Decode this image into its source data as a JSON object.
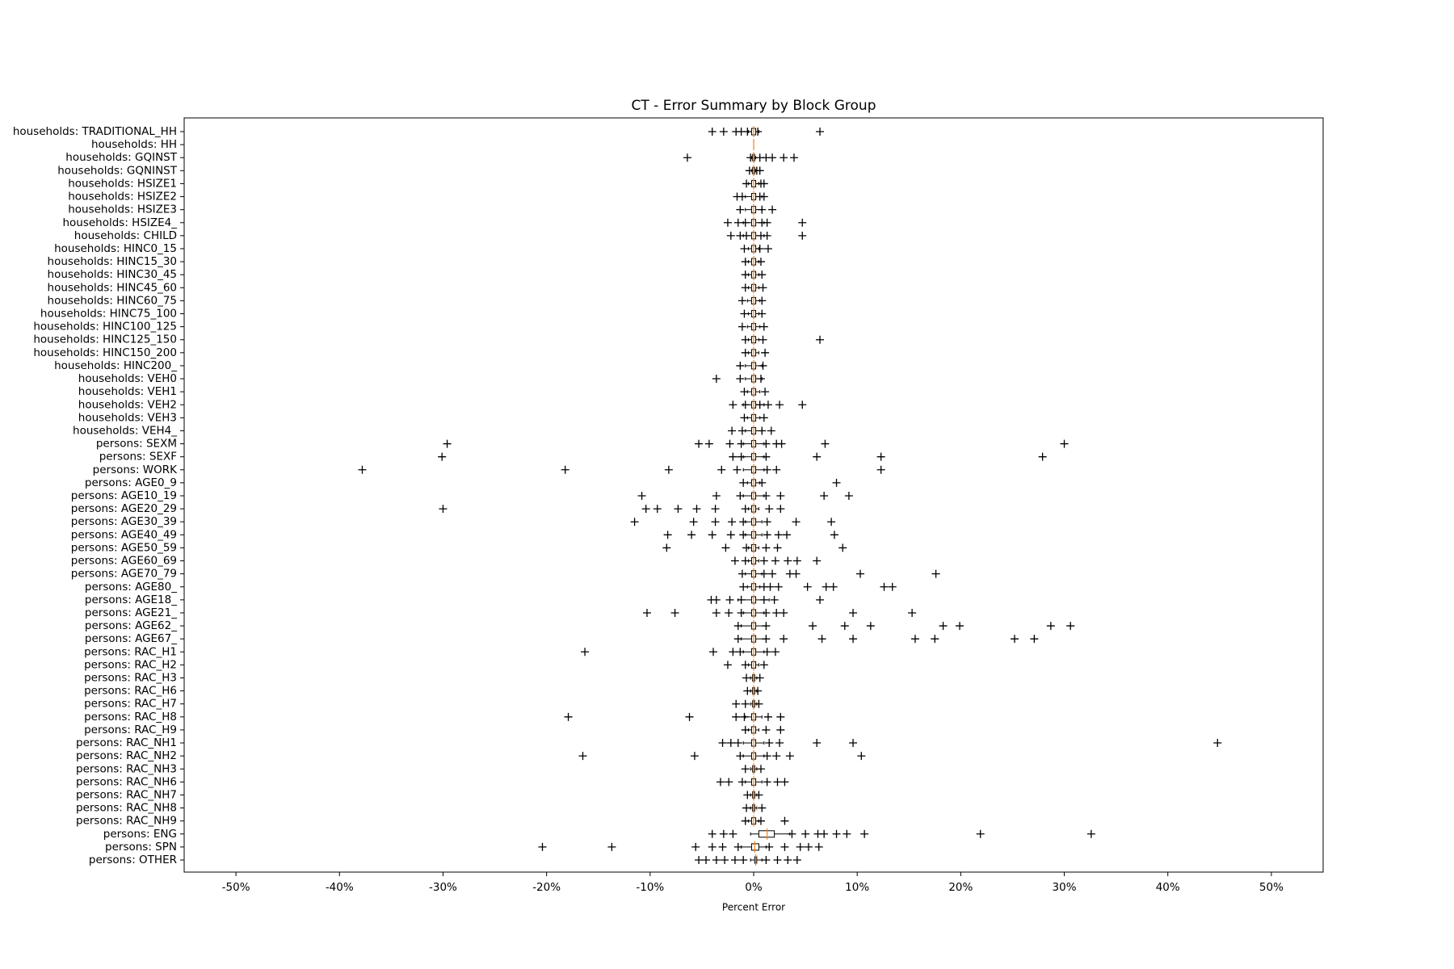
{
  "chart_data": {
    "type": "boxplot",
    "title": "CT - Error Summary by Block Group",
    "x_label": "Percent Error",
    "categories": [
      "households: TRADITIONAL_HH",
      "households: HH",
      "households: GQINST",
      "households: GQNINST",
      "households: HSIZE1",
      "households: HSIZE2",
      "households: HSIZE3",
      "households: HSIZE4_",
      "households: CHILD",
      "households: HINC0_15",
      "households: HINC15_30",
      "households: HINC30_45",
      "households: HINC45_60",
      "households: HINC60_75",
      "households: HINC75_100",
      "households: HINC100_125",
      "households: HINC125_150",
      "households: HINC150_200",
      "households: HINC200_",
      "households: VEH0",
      "households: VEH1",
      "households: VEH2",
      "households: VEH3",
      "households: VEH4_",
      "persons: SEXM",
      "persons: SEXF",
      "persons: WORK",
      "persons: AGE0_9",
      "persons: AGE10_19",
      "persons: AGE20_29",
      "persons: AGE30_39",
      "persons: AGE40_49",
      "persons: AGE50_59",
      "persons: AGE60_69",
      "persons: AGE70_79",
      "persons: AGE80_",
      "persons: AGE18_",
      "persons: AGE21_",
      "persons: AGE62_",
      "persons: AGE67_",
      "persons: RAC_H1",
      "persons: RAC_H2",
      "persons: RAC_H3",
      "persons: RAC_H6",
      "persons: RAC_H7",
      "persons: RAC_H8",
      "persons: RAC_H9",
      "persons: RAC_NH1",
      "persons: RAC_NH2",
      "persons: RAC_NH3",
      "persons: RAC_NH6",
      "persons: RAC_NH7",
      "persons: RAC_NH8",
      "persons: RAC_NH9",
      "persons: ENG",
      "persons: SPN",
      "persons: OTHER"
    ],
    "whislo": [
      -0.5,
      0,
      -0.2,
      -0.2,
      -0.5,
      -0.8,
      -0.8,
      -1,
      -1,
      -0.5,
      -0.5,
      -0.5,
      -0.5,
      -0.6,
      -0.5,
      -0.6,
      -0.5,
      -0.5,
      -0.8,
      -0.8,
      -0.6,
      -1,
      -0.6,
      -0.8,
      -1,
      -1,
      -1,
      -0.6,
      -1,
      -0.5,
      -0.8,
      -0.8,
      -0.5,
      -0.5,
      -0.8,
      -0.6,
      -1.5,
      -1,
      -1.2,
      -1.2,
      -1,
      -0.5,
      -0.3,
      -0.3,
      -0.3,
      -0.8,
      -0.5,
      -1,
      -1,
      -0.3,
      -0.8,
      -0.3,
      -0.3,
      -0.5,
      -0.3,
      -1.2,
      -0.3
    ],
    "q1": [
      -0.2,
      0,
      -0.1,
      -0.1,
      -0.2,
      -0.2,
      -0.2,
      -0.2,
      -0.2,
      -0.2,
      -0.2,
      -0.2,
      -0.2,
      -0.2,
      -0.2,
      -0.2,
      -0.2,
      -0.2,
      -0.2,
      -0.2,
      -0.2,
      -0.2,
      -0.2,
      -0.2,
      -0.2,
      -0.2,
      -0.2,
      -0.2,
      -0.2,
      -0.2,
      -0.2,
      -0.2,
      -0.2,
      -0.2,
      -0.2,
      -0.2,
      -0.2,
      -0.2,
      -0.2,
      -0.2,
      -0.2,
      -0.2,
      -0.1,
      -0.1,
      -0.1,
      -0.2,
      -0.2,
      -0.2,
      -0.2,
      -0.1,
      -0.2,
      -0.1,
      -0.1,
      -0.2,
      0.5,
      -0.2,
      0.1
    ],
    "median": [
      0,
      0,
      0,
      0,
      0,
      0,
      0,
      0,
      0,
      0,
      0,
      0,
      0,
      0,
      0,
      0,
      0,
      0,
      0,
      0,
      0,
      0,
      0,
      0,
      0,
      0,
      0,
      0,
      0,
      0,
      0,
      0,
      0,
      0,
      0,
      0,
      0,
      0,
      0,
      0,
      0,
      0,
      0,
      0,
      0,
      0,
      0,
      0,
      0,
      0,
      0,
      0,
      0,
      0,
      1.3,
      0.1,
      0.2
    ],
    "q3": [
      0.2,
      0,
      0.1,
      0.1,
      0.2,
      0.2,
      0.2,
      0.2,
      0.2,
      0.2,
      0.2,
      0.2,
      0.2,
      0.2,
      0.2,
      0.2,
      0.2,
      0.2,
      0.2,
      0.2,
      0.2,
      0.2,
      0.2,
      0.2,
      0.2,
      0.2,
      0.2,
      0.2,
      0.2,
      0.2,
      0.2,
      0.2,
      0.2,
      0.2,
      0.2,
      0.2,
      0.2,
      0.2,
      0.2,
      0.2,
      0.2,
      0.2,
      0.1,
      0.1,
      0.1,
      0.2,
      0.2,
      0.2,
      0.2,
      0.1,
      0.2,
      0.1,
      0.1,
      0.2,
      2.0,
      0.5,
      0.3
    ],
    "whishi": [
      0.5,
      0,
      0.2,
      0.2,
      0.5,
      0.8,
      0.8,
      1,
      1,
      0.5,
      0.5,
      0.5,
      0.5,
      0.6,
      0.5,
      0.6,
      0.5,
      0.5,
      0.8,
      0.8,
      0.6,
      1,
      0.6,
      0.8,
      1,
      1,
      1,
      0.6,
      1,
      0.5,
      0.8,
      0.8,
      0.5,
      0.5,
      0.8,
      0.6,
      1.5,
      1,
      1.2,
      1.2,
      1,
      0.5,
      0.3,
      0.3,
      0.3,
      0.8,
      0.5,
      1,
      1,
      0.3,
      0.8,
      0.3,
      0.3,
      0.5,
      3.5,
      1.2,
      0.8
    ],
    "fliers": [
      [
        -4,
        -2.9,
        -1.7,
        -1.2,
        -0.6,
        0.4,
        6.4
      ],
      [],
      [
        -6.4,
        -0.3,
        0.6,
        1.2,
        1.8,
        2.9,
        3.9
      ],
      [
        -0.4,
        0.3,
        0.6
      ],
      [
        -0.7,
        0.7,
        1.0
      ],
      [
        -1.6,
        -1.1,
        0.6,
        1.0
      ],
      [
        -1.3,
        0.8,
        1.8
      ],
      [
        -2.5,
        -1.5,
        -0.8,
        0.8,
        1.3,
        4.7
      ],
      [
        -2.2,
        -1.3,
        -0.7,
        0.7,
        1.3,
        4.7
      ],
      [
        -0.9,
        0.6,
        1.4
      ],
      [
        -0.8,
        0.7
      ],
      [
        -0.8,
        0.8
      ],
      [
        -0.8,
        0.9
      ],
      [
        -1.1,
        0.8
      ],
      [
        -0.9,
        0.8
      ],
      [
        -1.1,
        1.0
      ],
      [
        -0.8,
        0.9,
        6.4
      ],
      [
        -0.8,
        1.1
      ],
      [
        -1.3,
        0.9
      ],
      [
        -3.6,
        -1.3,
        0.7
      ],
      [
        -0.9,
        1.1
      ],
      [
        -2.0,
        -0.8,
        0.6,
        1.4,
        2.5,
        4.7
      ],
      [
        -0.9,
        1.0
      ],
      [
        -2.1,
        -1.1,
        0.8,
        1.7
      ],
      [
        -29.6,
        -5.3,
        -4.3,
        -2.3,
        -1.2,
        1.2,
        2.2,
        2.7,
        6.9,
        30.0
      ],
      [
        -30.1,
        -2.0,
        -1.2,
        1.2,
        6.1,
        12.3,
        27.9
      ],
      [
        -37.8,
        -18.2,
        -8.2,
        -3.1,
        -1.6,
        1.3,
        2.2,
        12.3
      ],
      [
        -1.0,
        0.8,
        8.0
      ],
      [
        -10.8,
        -3.6,
        -1.3,
        1.2,
        2.6,
        6.8,
        9.2
      ],
      [
        -30.0,
        -10.4,
        -9.3,
        -7.3,
        -5.5,
        -3.7,
        -0.8,
        1.5,
        2.6
      ],
      [
        -11.5,
        -5.8,
        -3.7,
        -2.1,
        -1.0,
        1.3,
        4.1,
        7.5
      ],
      [
        -8.3,
        -6.0,
        -4.0,
        -2.2,
        -1.0,
        1.3,
        2.4,
        3.2,
        7.8
      ],
      [
        -8.4,
        -2.7,
        -0.7,
        1.2,
        2.3,
        8.6
      ],
      [
        -1.8,
        -0.8,
        1.0,
        2.1,
        3.3,
        4.2,
        6.1
      ],
      [
        -1.1,
        1.0,
        1.8,
        3.5,
        4.1,
        10.3,
        17.6
      ],
      [
        -1.0,
        1.0,
        1.6,
        2.4,
        5.2,
        7.0,
        7.7,
        12.6,
        13.4
      ],
      [
        -4.1,
        -3.6,
        -2.3,
        -1.2,
        1.0,
        2.0,
        6.4
      ],
      [
        -10.3,
        -7.6,
        -3.6,
        -2.4,
        -1.2,
        1.2,
        2.2,
        2.9,
        9.6,
        15.3
      ],
      [
        -1.5,
        1.2,
        5.7,
        8.8,
        11.3,
        18.3,
        19.9,
        28.7,
        30.6
      ],
      [
        -1.5,
        1.2,
        2.9,
        6.6,
        9.6,
        15.6,
        17.5,
        25.2,
        27.1
      ],
      [
        -16.3,
        -3.9,
        -2.0,
        -1.3,
        1.3,
        2.1
      ],
      [
        -2.5,
        -0.8,
        1.0
      ],
      [
        -0.7,
        0.6
      ],
      [
        -0.6,
        0.4
      ],
      [
        -1.7,
        -0.8,
        0.5
      ],
      [
        -17.9,
        -6.2,
        -1.7,
        -0.9,
        1.4,
        2.6
      ],
      [
        -0.8,
        1.2,
        2.6
      ],
      [
        -3.0,
        -2.2,
        -1.5,
        1.5,
        2.5,
        6.1,
        9.6,
        44.8
      ],
      [
        -16.5,
        -5.7,
        -1.3,
        1.3,
        2.2,
        3.5,
        10.4
      ],
      [
        -0.8,
        0.7
      ],
      [
        -3.2,
        -2.4,
        -1.1,
        1.3,
        2.3,
        3.0
      ],
      [
        -0.6,
        0.5
      ],
      [
        -0.7,
        0.8
      ],
      [
        -0.8,
        0.7,
        3.0
      ],
      [
        -4.0,
        -2.9,
        -2.0,
        3.7,
        5.0,
        6.2,
        6.8,
        8.0,
        9.0,
        10.7,
        21.9,
        32.6
      ],
      [
        -20.4,
        -13.7,
        -5.6,
        -4.0,
        -3.0,
        -1.5,
        1.5,
        3.0,
        4.5,
        5.3,
        6.3
      ],
      [
        -5.3,
        -4.6,
        -3.6,
        -2.8,
        -1.8,
        -1.0,
        1.2,
        2.3,
        3.3,
        4.2
      ]
    ],
    "xlim": [
      -55,
      55
    ],
    "xticks": [
      {
        "value": -50,
        "label": "-50%"
      },
      {
        "value": -40,
        "label": "-40%"
      },
      {
        "value": -30,
        "label": "-30%"
      },
      {
        "value": -20,
        "label": "-20%"
      },
      {
        "value": -10,
        "label": "-10%"
      },
      {
        "value": 0,
        "label": "0%"
      },
      {
        "value": 10,
        "label": "10%"
      },
      {
        "value": 20,
        "label": "20%"
      },
      {
        "value": 30,
        "label": "30%"
      },
      {
        "value": 40,
        "label": "40%"
      },
      {
        "value": 50,
        "label": "50%"
      }
    ],
    "box_color": "#000000",
    "median_color": "#ff7f0e",
    "flier_color": "#000000"
  }
}
